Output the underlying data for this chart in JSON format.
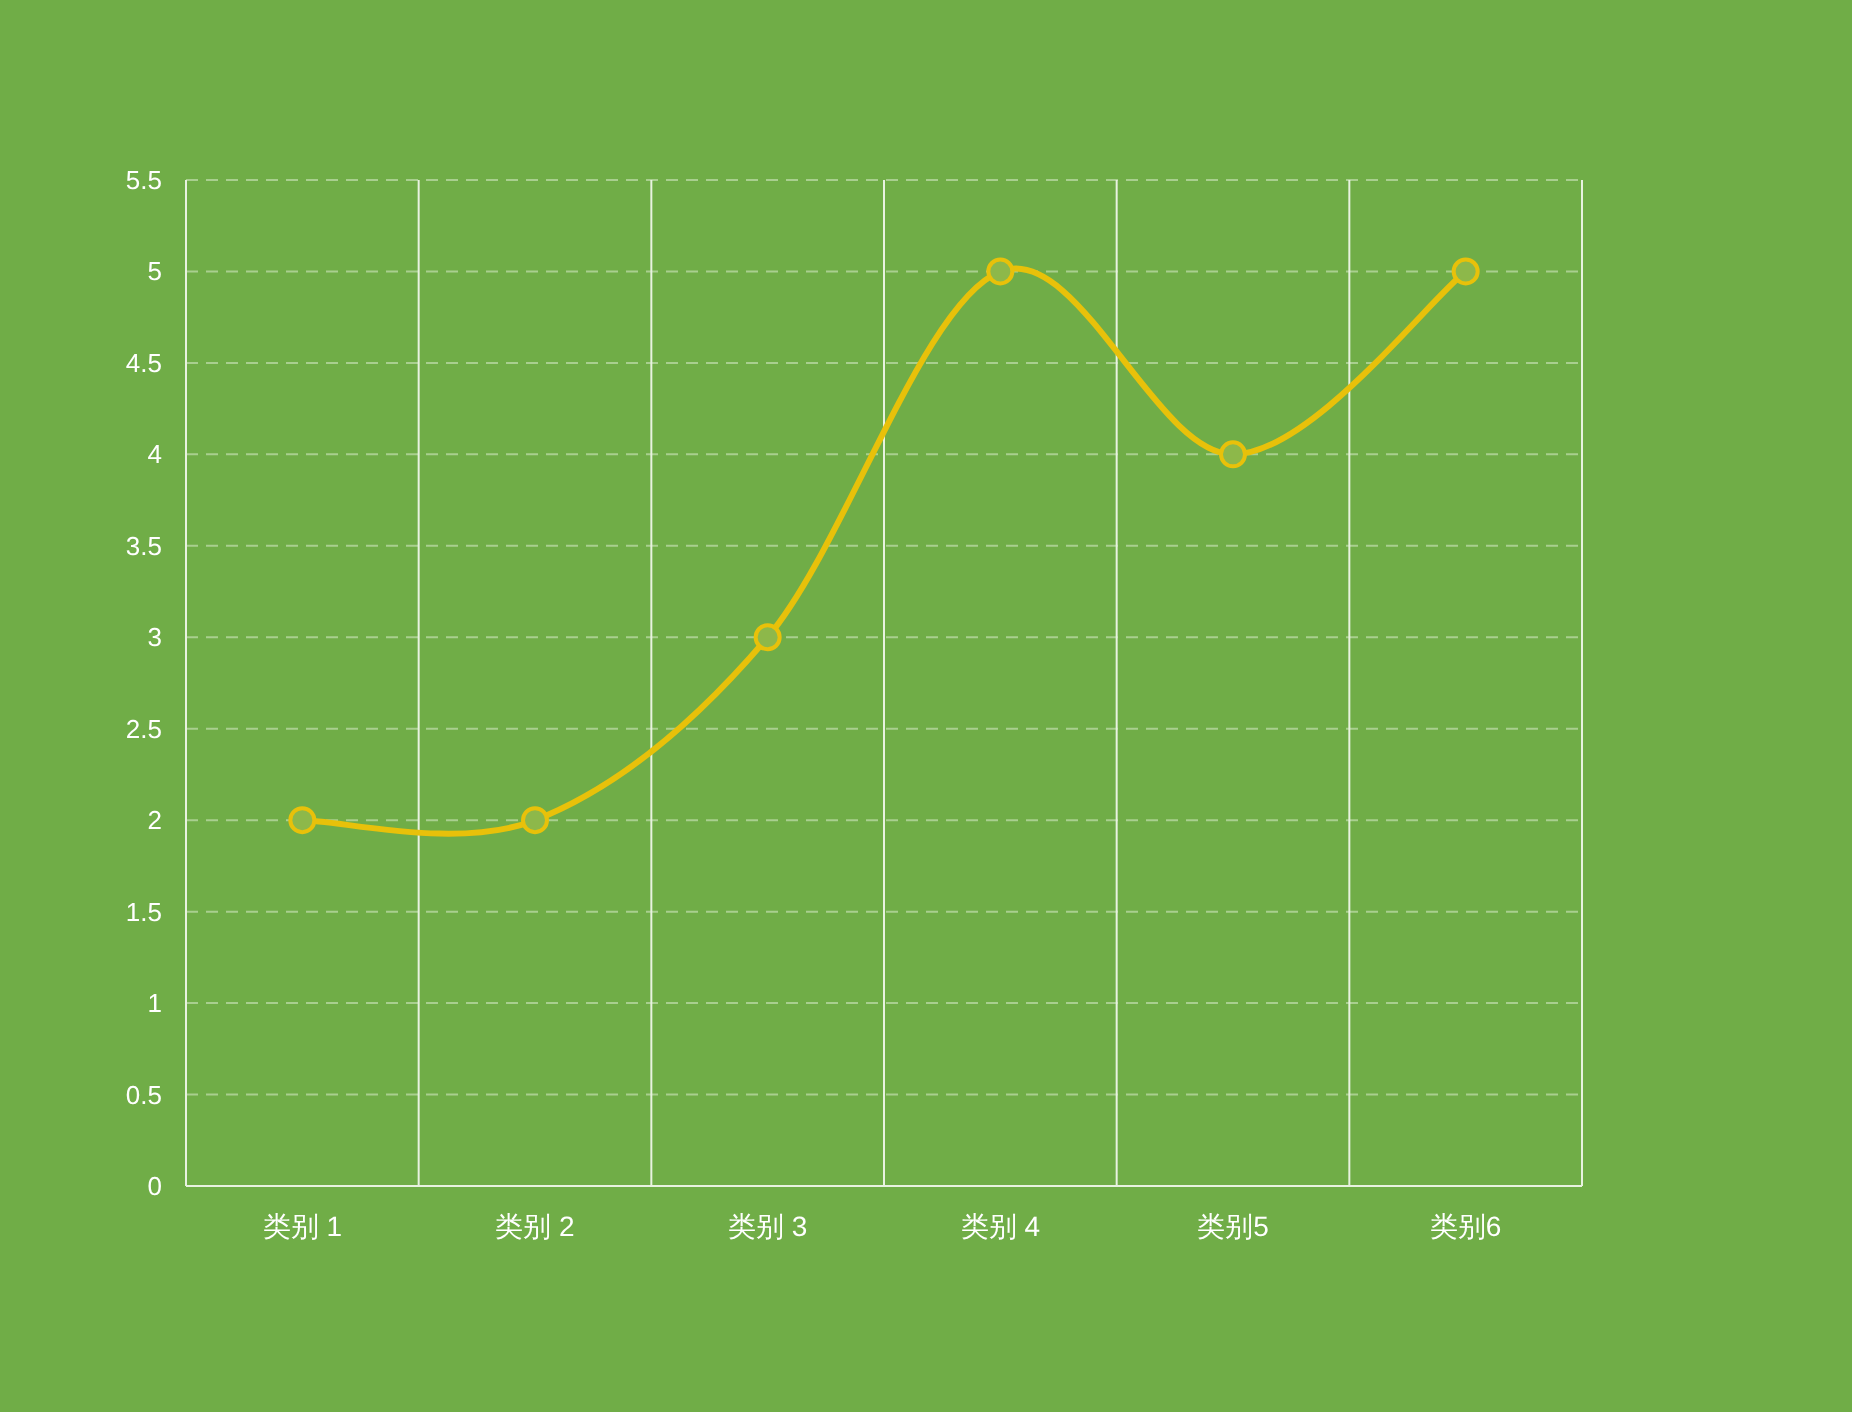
{
  "chart_data": {
    "type": "line",
    "categories": [
      "类别 1",
      "类别 2",
      "类别 3",
      "类别 4",
      "类别5",
      "类别6"
    ],
    "series": [
      {
        "color": "#e8c10a",
        "values": [
          2,
          2,
          3,
          5,
          4,
          5
        ]
      }
    ],
    "ylim": [
      0,
      5.5
    ],
    "yticks": [
      0,
      0.5,
      1,
      1.5,
      2,
      2.5,
      3,
      3.5,
      4,
      4.5,
      5,
      5.5
    ],
    "grid": true,
    "marker": "circle",
    "line_style": "solid"
  }
}
